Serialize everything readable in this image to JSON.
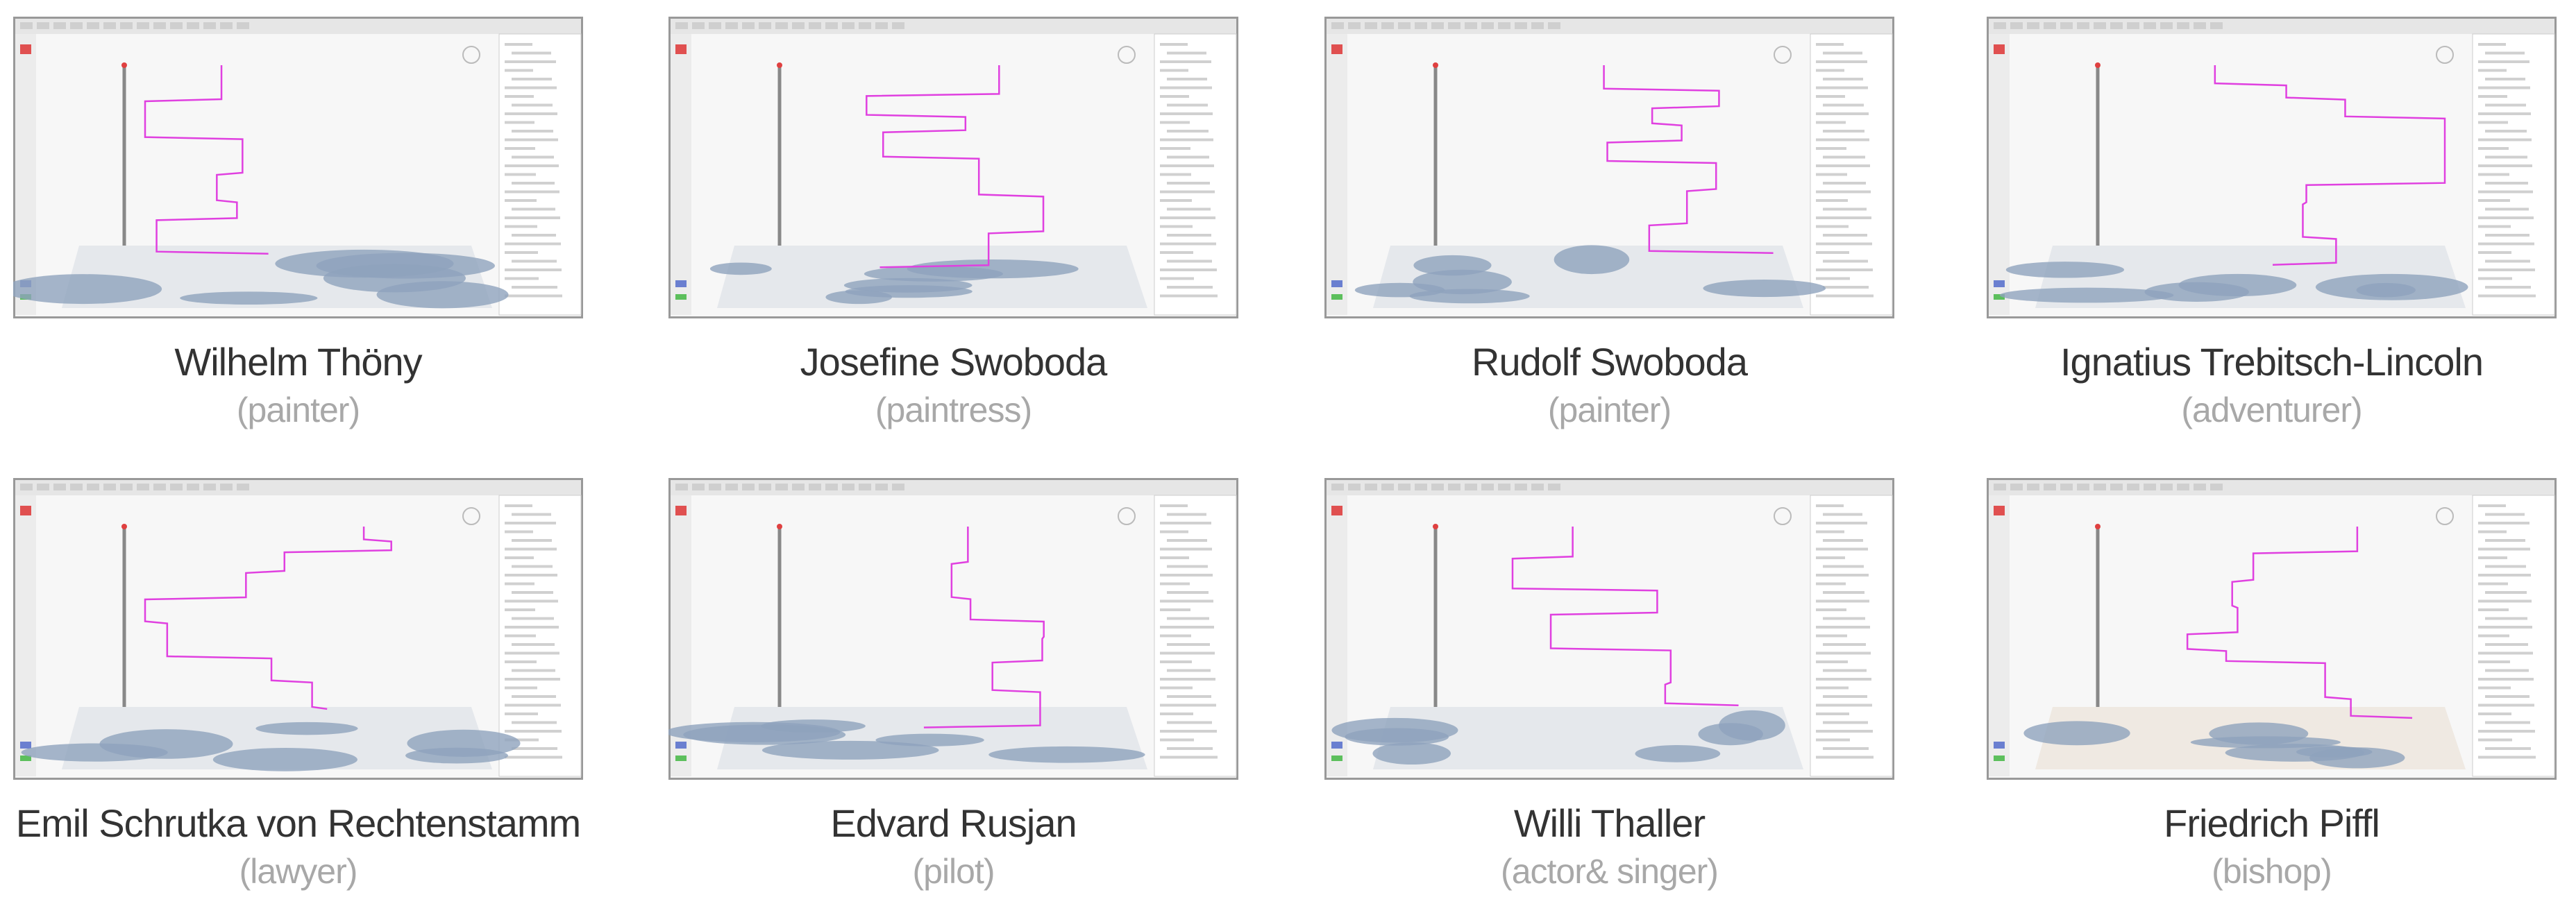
{
  "people": [
    {
      "name": "Wilhelm Thöny",
      "role": "(painter)"
    },
    {
      "name": "Josefine Swoboda",
      "role": "(paintress)"
    },
    {
      "name": "Rudolf Swoboda",
      "role": "(painter)"
    },
    {
      "name": "Ignatius Trebitsch-Lincoln",
      "role": "(adventurer)"
    },
    {
      "name": "Emil Schrutka von Rechtenstamm",
      "role": "(lawyer)"
    },
    {
      "name": "Edvard Rusjan",
      "role": "(pilot)"
    },
    {
      "name": "Willi Thaller",
      "role": "(actor& singer)"
    },
    {
      "name": "Friedrich Piffl",
      "role": "(bishop)"
    }
  ]
}
